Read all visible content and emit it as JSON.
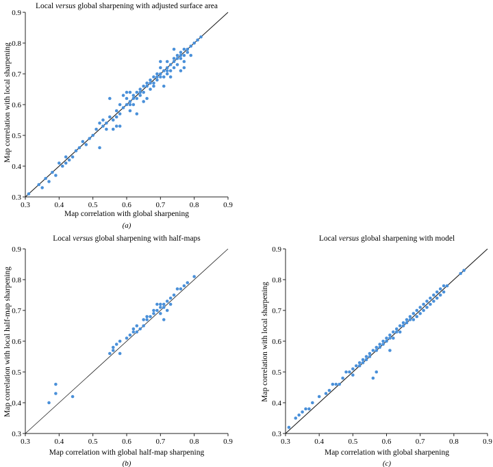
{
  "colors": {
    "points": "#4a90d9",
    "axes": "#222222",
    "identity_line": "#1a1a1a"
  },
  "chart_data": [
    {
      "type": "scatter",
      "panel_label": "(a)",
      "title_parts": [
        "Local ",
        "versus",
        " global sharpening with adjusted surface area"
      ],
      "xlabel": "Map correlation with global sharpening",
      "ylabel": "Map correlation with local sharpening",
      "xlim": [
        0.3,
        0.9
      ],
      "ylim": [
        0.3,
        0.9
      ],
      "xticks": [
        "0.3",
        "0.4",
        "0.5",
        "0.6",
        "0.7",
        "0.8",
        "0.9"
      ],
      "yticks": [
        "0.3",
        "0.4",
        "0.5",
        "0.6",
        "0.7",
        "0.8",
        "0.9"
      ],
      "identity_line": true,
      "points": [
        [
          0.31,
          0.31
        ],
        [
          0.34,
          0.34
        ],
        [
          0.35,
          0.33
        ],
        [
          0.36,
          0.36
        ],
        [
          0.37,
          0.35
        ],
        [
          0.38,
          0.38
        ],
        [
          0.39,
          0.37
        ],
        [
          0.4,
          0.41
        ],
        [
          0.41,
          0.4
        ],
        [
          0.42,
          0.43
        ],
        [
          0.43,
          0.42
        ],
        [
          0.44,
          0.43
        ],
        [
          0.46,
          0.46
        ],
        [
          0.47,
          0.48
        ],
        [
          0.48,
          0.47
        ],
        [
          0.49,
          0.49
        ],
        [
          0.5,
          0.5
        ],
        [
          0.51,
          0.52
        ],
        [
          0.52,
          0.54
        ],
        [
          0.52,
          0.46
        ],
        [
          0.53,
          0.53
        ],
        [
          0.53,
          0.55
        ],
        [
          0.54,
          0.54
        ],
        [
          0.55,
          0.56
        ],
        [
          0.56,
          0.55
        ],
        [
          0.57,
          0.53
        ],
        [
          0.57,
          0.58
        ],
        [
          0.58,
          0.57
        ],
        [
          0.58,
          0.6
        ],
        [
          0.59,
          0.59
        ],
        [
          0.59,
          0.63
        ],
        [
          0.6,
          0.62
        ],
        [
          0.6,
          0.64
        ],
        [
          0.61,
          0.61
        ],
        [
          0.61,
          0.6
        ],
        [
          0.62,
          0.62
        ],
        [
          0.62,
          0.63
        ],
        [
          0.63,
          0.62
        ],
        [
          0.63,
          0.64
        ],
        [
          0.64,
          0.65
        ],
        [
          0.64,
          0.63
        ],
        [
          0.65,
          0.66
        ],
        [
          0.65,
          0.64
        ],
        [
          0.66,
          0.66
        ],
        [
          0.66,
          0.67
        ],
        [
          0.67,
          0.68
        ],
        [
          0.67,
          0.65
        ],
        [
          0.68,
          0.69
        ],
        [
          0.68,
          0.67
        ],
        [
          0.69,
          0.7
        ],
        [
          0.69,
          0.68
        ],
        [
          0.7,
          0.7
        ],
        [
          0.7,
          0.72
        ],
        [
          0.71,
          0.71
        ],
        [
          0.71,
          0.69
        ],
        [
          0.72,
          0.72
        ],
        [
          0.72,
          0.7
        ],
        [
          0.73,
          0.73
        ],
        [
          0.73,
          0.71
        ],
        [
          0.74,
          0.74
        ],
        [
          0.74,
          0.72
        ],
        [
          0.75,
          0.76
        ],
        [
          0.75,
          0.73
        ],
        [
          0.76,
          0.75
        ],
        [
          0.76,
          0.77
        ],
        [
          0.77,
          0.76
        ],
        [
          0.77,
          0.74
        ],
        [
          0.78,
          0.78
        ],
        [
          0.79,
          0.79
        ],
        [
          0.8,
          0.8
        ],
        [
          0.81,
          0.81
        ],
        [
          0.82,
          0.82
        ],
        [
          0.7,
          0.74
        ],
        [
          0.72,
          0.74
        ],
        [
          0.74,
          0.78
        ],
        [
          0.71,
          0.66
        ],
        [
          0.56,
          0.52
        ],
        [
          0.55,
          0.62
        ],
        [
          0.65,
          0.61
        ],
        [
          0.66,
          0.62
        ],
        [
          0.58,
          0.53
        ],
        [
          0.61,
          0.58
        ],
        [
          0.63,
          0.57
        ],
        [
          0.73,
          0.69
        ],
        [
          0.76,
          0.71
        ],
        [
          0.77,
          0.72
        ],
        [
          0.68,
          0.66
        ],
        [
          0.75,
          0.75
        ],
        [
          0.76,
          0.76
        ],
        [
          0.74,
          0.75
        ],
        [
          0.72,
          0.71
        ],
        [
          0.7,
          0.69
        ],
        [
          0.69,
          0.69
        ],
        [
          0.67,
          0.67
        ],
        [
          0.64,
          0.64
        ],
        [
          0.6,
          0.6
        ],
        [
          0.57,
          0.56
        ],
        [
          0.54,
          0.52
        ],
        [
          0.45,
          0.45
        ],
        [
          0.42,
          0.41
        ],
        [
          0.61,
          0.64
        ],
        [
          0.62,
          0.6
        ],
        [
          0.78,
          0.77
        ],
        [
          0.79,
          0.76
        ],
        [
          0.77,
          0.78
        ]
      ]
    },
    {
      "type": "scatter",
      "panel_label": "(b)",
      "title_parts": [
        "Local ",
        "versus",
        " global sharpening with half-maps"
      ],
      "xlabel": "Map correlation with global half-map sharpening",
      "ylabel": "Map correlation with local half-map sharpening",
      "xlim": [
        0.3,
        0.9
      ],
      "ylim": [
        0.3,
        0.9
      ],
      "xticks": [
        "0.3",
        "0.4",
        "0.5",
        "0.6",
        "0.7",
        "0.8",
        "0.9"
      ],
      "yticks": [
        "0.3",
        "0.4",
        "0.5",
        "0.6",
        "0.7",
        "0.8",
        "0.9"
      ],
      "identity_line": true,
      "points": [
        [
          0.37,
          0.4
        ],
        [
          0.39,
          0.46
        ],
        [
          0.39,
          0.43
        ],
        [
          0.44,
          0.42
        ],
        [
          0.55,
          0.56
        ],
        [
          0.56,
          0.57
        ],
        [
          0.57,
          0.59
        ],
        [
          0.58,
          0.56
        ],
        [
          0.58,
          0.6
        ],
        [
          0.6,
          0.61
        ],
        [
          0.61,
          0.62
        ],
        [
          0.62,
          0.64
        ],
        [
          0.62,
          0.63
        ],
        [
          0.63,
          0.65
        ],
        [
          0.64,
          0.64
        ],
        [
          0.65,
          0.65
        ],
        [
          0.65,
          0.67
        ],
        [
          0.66,
          0.67
        ],
        [
          0.67,
          0.68
        ],
        [
          0.68,
          0.69
        ],
        [
          0.68,
          0.7
        ],
        [
          0.69,
          0.7
        ],
        [
          0.7,
          0.72
        ],
        [
          0.7,
          0.71
        ],
        [
          0.71,
          0.71
        ],
        [
          0.71,
          0.72
        ],
        [
          0.71,
          0.67
        ],
        [
          0.72,
          0.73
        ],
        [
          0.72,
          0.7
        ],
        [
          0.73,
          0.74
        ],
        [
          0.73,
          0.72
        ],
        [
          0.74,
          0.75
        ],
        [
          0.75,
          0.77
        ],
        [
          0.76,
          0.77
        ],
        [
          0.77,
          0.78
        ],
        [
          0.78,
          0.79
        ],
        [
          0.8,
          0.81
        ],
        [
          0.69,
          0.72
        ],
        [
          0.66,
          0.68
        ],
        [
          0.63,
          0.63
        ],
        [
          0.56,
          0.58
        ],
        [
          0.7,
          0.69
        ]
      ]
    },
    {
      "type": "scatter",
      "panel_label": "(c)",
      "title_parts": [
        "Local ",
        "versus",
        " global sharpening with model"
      ],
      "xlabel": "Map correlation with global sharpening",
      "ylabel": "Map correlation with local sharpening",
      "xlim": [
        0.3,
        0.9
      ],
      "ylim": [
        0.3,
        0.9
      ],
      "xticks": [
        "0.3",
        "0.4",
        "0.5",
        "0.6",
        "0.7",
        "0.8",
        "0.9"
      ],
      "yticks": [
        "0.3",
        "0.4",
        "0.5",
        "0.6",
        "0.7",
        "0.8",
        "0.9"
      ],
      "identity_line": true,
      "points": [
        [
          0.31,
          0.32
        ],
        [
          0.33,
          0.35
        ],
        [
          0.34,
          0.36
        ],
        [
          0.35,
          0.37
        ],
        [
          0.36,
          0.38
        ],
        [
          0.38,
          0.4
        ],
        [
          0.4,
          0.42
        ],
        [
          0.43,
          0.44
        ],
        [
          0.44,
          0.46
        ],
        [
          0.45,
          0.46
        ],
        [
          0.47,
          0.48
        ],
        [
          0.48,
          0.5
        ],
        [
          0.49,
          0.5
        ],
        [
          0.5,
          0.51
        ],
        [
          0.51,
          0.52
        ],
        [
          0.52,
          0.53
        ],
        [
          0.53,
          0.54
        ],
        [
          0.54,
          0.55
        ],
        [
          0.55,
          0.56
        ],
        [
          0.56,
          0.57
        ],
        [
          0.56,
          0.48
        ],
        [
          0.57,
          0.5
        ],
        [
          0.57,
          0.58
        ],
        [
          0.58,
          0.59
        ],
        [
          0.59,
          0.6
        ],
        [
          0.6,
          0.61
        ],
        [
          0.61,
          0.62
        ],
        [
          0.61,
          0.57
        ],
        [
          0.62,
          0.63
        ],
        [
          0.63,
          0.64
        ],
        [
          0.64,
          0.65
        ],
        [
          0.65,
          0.66
        ],
        [
          0.66,
          0.67
        ],
        [
          0.67,
          0.68
        ],
        [
          0.68,
          0.69
        ],
        [
          0.69,
          0.7
        ],
        [
          0.7,
          0.71
        ],
        [
          0.71,
          0.72
        ],
        [
          0.72,
          0.73
        ],
        [
          0.73,
          0.74
        ],
        [
          0.74,
          0.75
        ],
        [
          0.75,
          0.76
        ],
        [
          0.76,
          0.77
        ],
        [
          0.77,
          0.78
        ],
        [
          0.78,
          0.78
        ],
        [
          0.82,
          0.82
        ],
        [
          0.83,
          0.83
        ],
        [
          0.72,
          0.71
        ],
        [
          0.74,
          0.73
        ],
        [
          0.76,
          0.75
        ],
        [
          0.7,
          0.69
        ],
        [
          0.68,
          0.67
        ],
        [
          0.66,
          0.66
        ],
        [
          0.64,
          0.63
        ],
        [
          0.62,
          0.61
        ],
        [
          0.6,
          0.6
        ],
        [
          0.58,
          0.58
        ],
        [
          0.55,
          0.55
        ],
        [
          0.53,
          0.53
        ],
        [
          0.52,
          0.52
        ],
        [
          0.5,
          0.49
        ],
        [
          0.46,
          0.46
        ],
        [
          0.42,
          0.43
        ],
        [
          0.37,
          0.38
        ],
        [
          0.77,
          0.76
        ],
        [
          0.75,
          0.74
        ],
        [
          0.73,
          0.72
        ],
        [
          0.71,
          0.7
        ],
        [
          0.69,
          0.68
        ],
        [
          0.67,
          0.67
        ],
        [
          0.65,
          0.65
        ],
        [
          0.63,
          0.63
        ],
        [
          0.61,
          0.61
        ],
        [
          0.59,
          0.59
        ],
        [
          0.57,
          0.57
        ],
        [
          0.54,
          0.54
        ]
      ]
    }
  ]
}
